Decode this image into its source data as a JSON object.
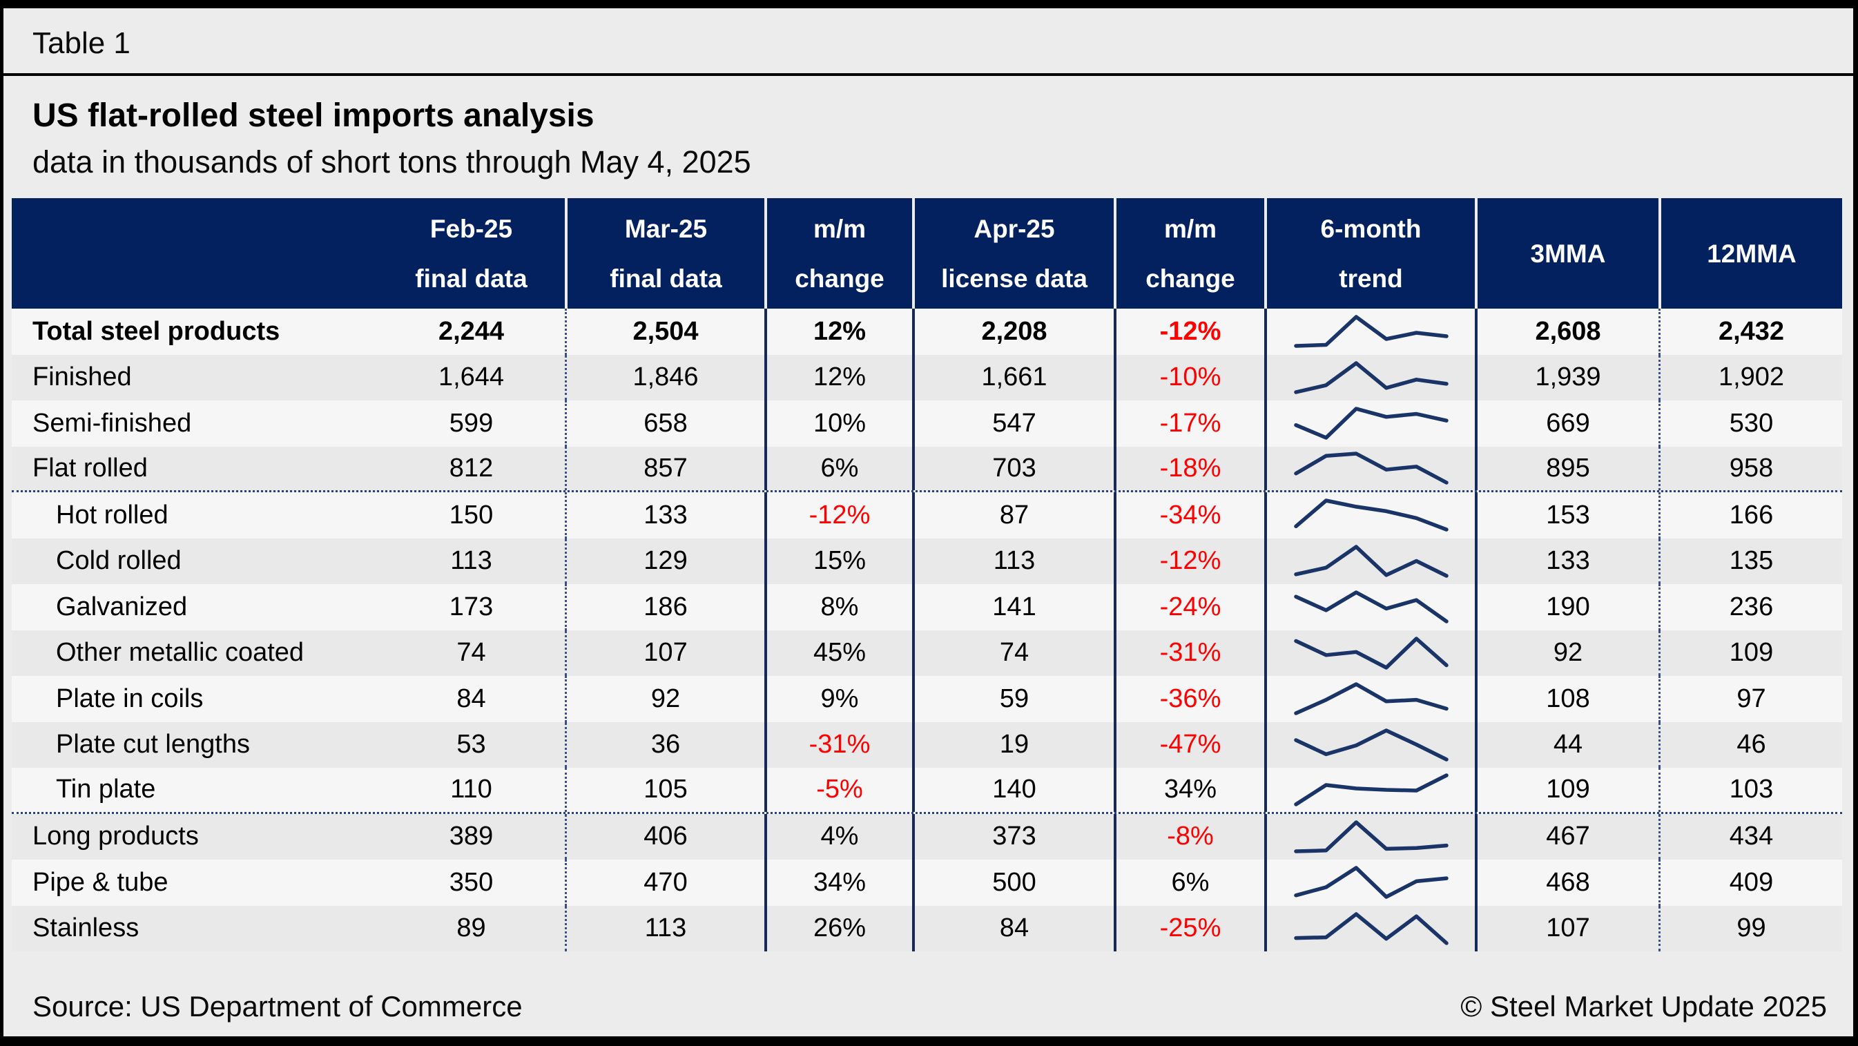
{
  "page": {
    "table_label": "Table 1",
    "title": "US flat-rolled steel imports analysis",
    "subtitle": "data in thousands of short tons through May 4, 2025"
  },
  "colors": {
    "header_bg": "#03215f",
    "negative_text": "#ff0000",
    "sparkline": "#1b3468",
    "solid_divider": "#16295d",
    "dotted_divider": "#3a4f87",
    "row_light": "#f6f6f6",
    "row_dark": "#e9e9e9",
    "page_bg": "#ececec"
  },
  "chart_data": {
    "type": "table",
    "table_label": "Table 1",
    "title": "US flat-rolled steel imports analysis",
    "subtitle": "data in thousands of short tons through May 4, 2025",
    "trend_scale": "relative 0-10 shape estimated from 6-month sparklines",
    "columns": [
      {
        "id": "product",
        "line1": "",
        "line2": ""
      },
      {
        "id": "feb25-final",
        "line1": "Feb-25",
        "line2": "final data"
      },
      {
        "id": "mar25-final",
        "line1": "Mar-25",
        "line2": "final data"
      },
      {
        "id": "mm-change-mar",
        "line1": "m/m",
        "line2": "change"
      },
      {
        "id": "apr25-license",
        "line1": "Apr-25",
        "line2": "license data"
      },
      {
        "id": "mm-change-apr",
        "line1": "m/m",
        "line2": "change"
      },
      {
        "id": "trend-6month",
        "line1": "6-month",
        "line2": "trend"
      },
      {
        "id": "3mma",
        "line1": "3MMA",
        "line2": ""
      },
      {
        "id": "12mma",
        "line1": "12MMA",
        "line2": ""
      }
    ],
    "rows": [
      {
        "label": "Total steel products",
        "bold": true,
        "indent": false,
        "feb": "2,244",
        "mar": "2,504",
        "mm1": "12%",
        "apr": "2,208",
        "mm2": "-12%",
        "trend": [
          1.2,
          1.5,
          9.6,
          3.2,
          5.0,
          4.0
        ],
        "mma3": "2,608",
        "mma12": "2,432",
        "divider_below": false
      },
      {
        "label": "Finished",
        "bold": false,
        "indent": false,
        "feb": "1,644",
        "mar": "1,846",
        "mm1": "12%",
        "apr": "1,661",
        "mm2": "-10%",
        "trend": [
          1.0,
          3.0,
          9.3,
          2.2,
          4.6,
          3.4
        ],
        "mma3": "1,939",
        "mma12": "1,902",
        "divider_below": false
      },
      {
        "label": "Semi-finished",
        "bold": false,
        "indent": false,
        "feb": "599",
        "mar": "658",
        "mm1": "10%",
        "apr": "547",
        "mm2": "-17%",
        "trend": [
          4.6,
          1.2,
          9.0,
          6.8,
          7.6,
          5.8
        ],
        "mma3": "669",
        "mma12": "530",
        "divider_below": false
      },
      {
        "label": "Flat rolled",
        "bold": false,
        "indent": false,
        "feb": "812",
        "mar": "857",
        "mm1": "6%",
        "apr": "703",
        "mm2": "-18%",
        "trend": [
          3.2,
          7.8,
          8.4,
          4.2,
          5.0,
          0.8
        ],
        "mma3": "895",
        "mma12": "958",
        "divider_below": true
      },
      {
        "label": "Hot rolled",
        "bold": false,
        "indent": true,
        "feb": "150",
        "mar": "133",
        "mm1": "-12%",
        "apr": "87",
        "mm2": "-34%",
        "trend": [
          3.0,
          9.3,
          7.8,
          6.7,
          5.0,
          2.2
        ],
        "mma3": "153",
        "mma12": "166",
        "divider_below": false
      },
      {
        "label": "Cold rolled",
        "bold": false,
        "indent": true,
        "feb": "113",
        "mar": "129",
        "mm1": "15%",
        "apr": "113",
        "mm2": "-12%",
        "trend": [
          1.8,
          3.6,
          9.2,
          1.6,
          5.4,
          1.4
        ],
        "mma3": "133",
        "mma12": "135",
        "divider_below": false
      },
      {
        "label": "Galvanized",
        "bold": false,
        "indent": true,
        "feb": "173",
        "mar": "186",
        "mm1": "8%",
        "apr": "141",
        "mm2": "-24%",
        "trend": [
          7.6,
          4.4,
          8.6,
          4.8,
          6.8,
          1.8
        ],
        "mma3": "190",
        "mma12": "236",
        "divider_below": false
      },
      {
        "label": "Other metallic coated",
        "bold": false,
        "indent": true,
        "feb": "74",
        "mar": "107",
        "mm1": "45%",
        "apr": "74",
        "mm2": "-31%",
        "trend": [
          8.6,
          5.0,
          5.8,
          1.8,
          9.2,
          2.4
        ],
        "mma3": "92",
        "mma12": "109",
        "divider_below": false
      },
      {
        "label": "Plate in coils",
        "bold": false,
        "indent": true,
        "feb": "84",
        "mar": "92",
        "mm1": "9%",
        "apr": "59",
        "mm2": "-36%",
        "trend": [
          1.4,
          5.0,
          9.2,
          4.6,
          5.0,
          2.6
        ],
        "mma3": "108",
        "mma12": "97",
        "divider_below": false
      },
      {
        "label": "Plate cut lengths",
        "bold": false,
        "indent": true,
        "feb": "53",
        "mar": "36",
        "mm1": "-31%",
        "apr": "19",
        "mm2": "-47%",
        "trend": [
          6.6,
          3.4,
          5.4,
          8.8,
          5.6,
          2.2
        ],
        "mma3": "44",
        "mma12": "46",
        "divider_below": false
      },
      {
        "label": "Tin plate",
        "bold": false,
        "indent": true,
        "feb": "110",
        "mar": "105",
        "mm1": "-5%",
        "apr": "140",
        "mm2": "34%",
        "trend": [
          0.8,
          6.4,
          5.4,
          5.0,
          4.8,
          9.2
        ],
        "mma3": "109",
        "mma12": "103",
        "divider_below": true
      },
      {
        "label": "Long products",
        "bold": false,
        "indent": false,
        "feb": "389",
        "mar": "406",
        "mm1": "4%",
        "apr": "373",
        "mm2": "-8%",
        "trend": [
          2.4,
          2.6,
          9.4,
          3.0,
          3.2,
          3.8
        ],
        "mma3": "467",
        "mma12": "434",
        "divider_below": false
      },
      {
        "label": "Pipe & tube",
        "bold": false,
        "indent": false,
        "feb": "350",
        "mar": "470",
        "mm1": "34%",
        "apr": "500",
        "mm2": "6%",
        "trend": [
          2.0,
          4.2,
          9.4,
          1.6,
          5.8,
          6.6
        ],
        "mma3": "468",
        "mma12": "409",
        "divider_below": false
      },
      {
        "label": "Stainless",
        "bold": false,
        "indent": false,
        "feb": "89",
        "mar": "113",
        "mm1": "26%",
        "apr": "84",
        "mm2": "-25%",
        "trend": [
          2.2,
          2.4,
          8.8,
          2.0,
          8.2,
          0.8
        ],
        "mma3": "107",
        "mma12": "99",
        "divider_below": false
      }
    ]
  },
  "footer": {
    "source": "Source: US Department of Commerce",
    "copyright": "© Steel Market Update 2025"
  }
}
